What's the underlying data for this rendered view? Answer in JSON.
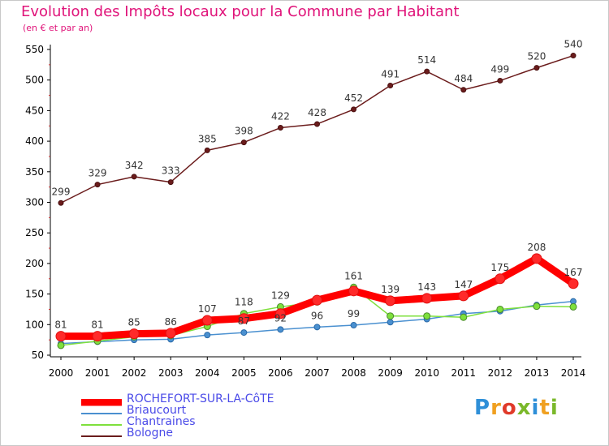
{
  "header": {
    "title": "Evolution des Impôts locaux pour la Commune par Habitant",
    "subtitle": "(en € et par an)"
  },
  "logo": {
    "text": "Proxiti",
    "colors": [
      "#2e8fd8",
      "#f0a020",
      "#e03a2a",
      "#7ab82a",
      "#2e8fd8",
      "#f0a020",
      "#7ab82a"
    ]
  },
  "chart_data": {
    "type": "line",
    "title": "Evolution des Impôts locaux pour la Commune par Habitant",
    "subtitle": "(en € et par an)",
    "xlabel": "",
    "ylabel": "",
    "x": [
      "2000",
      "2001",
      "2002",
      "2003",
      "2004",
      "2005",
      "2006",
      "2007",
      "2008",
      "2009",
      "2010",
      "2011",
      "2012",
      "2013",
      "2014"
    ],
    "ylim": [
      50,
      550
    ],
    "yticks": [
      50,
      100,
      150,
      200,
      250,
      300,
      350,
      400,
      450,
      500,
      550
    ],
    "grid": false,
    "legend_position": "bottom-left",
    "series": [
      {
        "name": "ROCHEFORT-SUR-LA-CôTE",
        "color": "#ff0000",
        "values": [
          81,
          81,
          85,
          86,
          107,
          110,
          118,
          140,
          155,
          139,
          143,
          147,
          175,
          208,
          167
        ],
        "labels": [
          "81",
          "81",
          "85",
          "86",
          "107",
          "",
          "",
          "",
          "",
          "139",
          "143",
          "147",
          "175",
          "208",
          "167"
        ]
      },
      {
        "name": "Briaucourt",
        "color": "#4a90d0",
        "values": [
          69,
          72,
          75,
          76,
          83,
          87,
          92,
          96,
          99,
          104,
          109,
          118,
          122,
          132,
          138
        ],
        "labels": [
          "",
          "",
          "",
          "",
          "",
          "87",
          "92",
          "96",
          "99",
          "",
          "",
          "",
          "",
          "",
          ""
        ]
      },
      {
        "name": "Chantraines",
        "color": "#7ee03c",
        "values": [
          66,
          73,
          80,
          82,
          97,
          118,
          129,
          137,
          161,
          114,
          114,
          112,
          125,
          130,
          129
        ],
        "labels": [
          "",
          "",
          "",
          "",
          "",
          "118",
          "129",
          "",
          "161",
          "",
          "",
          "",
          "",
          "",
          ""
        ]
      },
      {
        "name": "Bologne",
        "color": "#6b1c1c",
        "values": [
          299,
          329,
          342,
          333,
          385,
          398,
          422,
          428,
          452,
          491,
          514,
          484,
          499,
          520,
          540
        ],
        "labels": [
          "299",
          "329",
          "342",
          "333",
          "385",
          "398",
          "422",
          "428",
          "452",
          "491",
          "514",
          "484",
          "499",
          "520",
          "540"
        ]
      }
    ]
  }
}
